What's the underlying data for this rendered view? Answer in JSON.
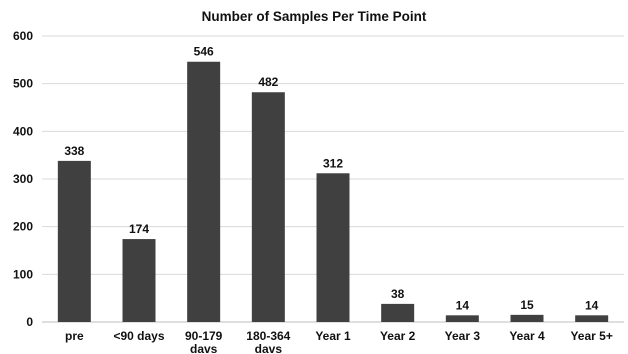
{
  "chart_data": {
    "type": "bar",
    "title": "Number of Samples Per Time Point",
    "xlabel": "",
    "ylabel": "",
    "ylim": [
      0,
      600
    ],
    "yticks": [
      "0",
      "100",
      "200",
      "300",
      "400",
      "500",
      "600"
    ],
    "grid": true,
    "legend": "none",
    "categories": [
      [
        "pre"
      ],
      [
        "<90 days"
      ],
      [
        "90-179",
        "davs"
      ],
      [
        "180-364",
        "davs"
      ],
      [
        "Year 1"
      ],
      [
        "Year 2"
      ],
      [
        "Year 3"
      ],
      [
        "Year 4"
      ],
      [
        "Year 5+"
      ]
    ],
    "values": [
      338,
      174,
      546,
      482,
      312,
      38,
      14,
      15,
      14
    ],
    "data_labels": [
      "338",
      "174",
      "546",
      "482",
      "312",
      "38",
      "14",
      "15",
      "14"
    ],
    "bar_color": "#404040",
    "grid_color": "#d9d9d9"
  }
}
